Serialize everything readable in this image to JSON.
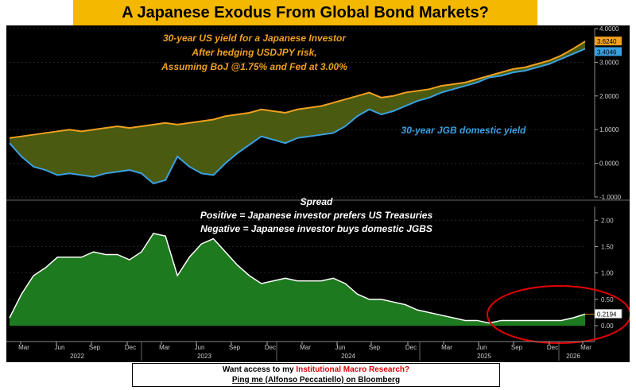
{
  "header": {
    "title": "A Japanese Exodus From Global Bond Markets?"
  },
  "footer": {
    "line1_prefix": "Want access to my ",
    "line1_highlight": "Institutional Macro Research?",
    "line2": "Ping me (Alfonso Peccatiello) on Bloomberg"
  },
  "colors": {
    "us_hedged": "#f0a020",
    "jgb": "#3aa0e0",
    "fill_between": "#4a5a10",
    "spread_fill": "#1e7a1e",
    "spread_line": "#ffffff",
    "highlight": "#e00000"
  },
  "chart_data": [
    {
      "type": "line",
      "annotation_title_lines": [
        "30-year US yield for a Japanese Investor",
        "After hedging USDJPY risk,",
        "Assuming BoJ @1.75% and Fed at 3.00%"
      ],
      "annotation_jgb": "30-year JGB domestic yield",
      "yticks": [
        "4.0000",
        "3.0000",
        "2.0000",
        "1.0000",
        "0.0000",
        "-1.0000"
      ],
      "ylim": [
        -1.0,
        4.0
      ],
      "last_values": [
        "3.6240",
        "3.4046"
      ],
      "series": [
        {
          "x": [
            "2022-01",
            "2022-02",
            "2022-03",
            "2022-04",
            "2022-05",
            "2022-06",
            "2022-07",
            "2022-08",
            "2022-09",
            "2022-10",
            "2022-11",
            "2022-12",
            "2023-01",
            "2023-02",
            "2023-03",
            "2023-04",
            "2023-05",
            "2023-06",
            "2023-07",
            "2023-08",
            "2023-09",
            "2023-10",
            "2023-11",
            "2023-12",
            "2024-01",
            "2024-02",
            "2024-03",
            "2024-04",
            "2024-05",
            "2024-06",
            "2024-07",
            "2024-08",
            "2024-09",
            "2024-10",
            "2024-11",
            "2024-12",
            "2025-01",
            "2025-02",
            "2025-03",
            "2025-04",
            "2025-05",
            "2025-06",
            "2025-07",
            "2025-08",
            "2025-09",
            "2025-10",
            "2025-11",
            "2025-12",
            "2026-01"
          ],
          "values": [
            0.75,
            0.8,
            0.85,
            0.9,
            0.95,
            1.0,
            0.95,
            1.0,
            1.05,
            1.1,
            1.05,
            1.1,
            1.15,
            1.2,
            1.15,
            1.2,
            1.25,
            1.3,
            1.4,
            1.45,
            1.5,
            1.6,
            1.55,
            1.5,
            1.6,
            1.65,
            1.7,
            1.8,
            1.9,
            2.0,
            2.1,
            1.95,
            2.0,
            2.1,
            2.15,
            2.2,
            2.3,
            2.35,
            2.4,
            2.5,
            2.6,
            2.7,
            2.8,
            2.85,
            2.95,
            3.05,
            3.2,
            3.4,
            3.62
          ]
        },
        {
          "x": [
            "2022-01",
            "2022-02",
            "2022-03",
            "2022-04",
            "2022-05",
            "2022-06",
            "2022-07",
            "2022-08",
            "2022-09",
            "2022-10",
            "2022-11",
            "2022-12",
            "2023-01",
            "2023-02",
            "2023-03",
            "2023-04",
            "2023-05",
            "2023-06",
            "2023-07",
            "2023-08",
            "2023-09",
            "2023-10",
            "2023-11",
            "2023-12",
            "2024-01",
            "2024-02",
            "2024-03",
            "2024-04",
            "2024-05",
            "2024-06",
            "2024-07",
            "2024-08",
            "2024-09",
            "2024-10",
            "2024-11",
            "2024-12",
            "2025-01",
            "2025-02",
            "2025-03",
            "2025-04",
            "2025-05",
            "2025-06",
            "2025-07",
            "2025-08",
            "2025-09",
            "2025-10",
            "2025-11",
            "2025-12",
            "2026-01"
          ],
          "values": [
            0.6,
            0.2,
            -0.1,
            -0.2,
            -0.35,
            -0.3,
            -0.35,
            -0.4,
            -0.3,
            -0.25,
            -0.2,
            -0.3,
            -0.6,
            -0.5,
            0.2,
            -0.1,
            -0.3,
            -0.35,
            0.0,
            0.3,
            0.55,
            0.8,
            0.7,
            0.6,
            0.75,
            0.8,
            0.85,
            0.9,
            1.1,
            1.4,
            1.6,
            1.45,
            1.55,
            1.7,
            1.85,
            1.95,
            2.1,
            2.2,
            2.3,
            2.4,
            2.55,
            2.6,
            2.7,
            2.75,
            2.85,
            2.95,
            3.1,
            3.25,
            3.4
          ]
        }
      ]
    },
    {
      "type": "area",
      "annotation_lines": [
        "Spread",
        "Positive = Japanese investor prefers US Treasuries",
        "Negative = Japanese investor buys domestic JGBS"
      ],
      "yticks": [
        "2.00",
        "1.50",
        "1.00",
        "0.50",
        "0.00"
      ],
      "ylim": [
        -0.3,
        2.2
      ],
      "last_value": "0.2194",
      "x": [
        "2022-01",
        "2022-02",
        "2022-03",
        "2022-04",
        "2022-05",
        "2022-06",
        "2022-07",
        "2022-08",
        "2022-09",
        "2022-10",
        "2022-11",
        "2022-12",
        "2023-01",
        "2023-02",
        "2023-03",
        "2023-04",
        "2023-05",
        "2023-06",
        "2023-07",
        "2023-08",
        "2023-09",
        "2023-10",
        "2023-11",
        "2023-12",
        "2024-01",
        "2024-02",
        "2024-03",
        "2024-04",
        "2024-05",
        "2024-06",
        "2024-07",
        "2024-08",
        "2024-09",
        "2024-10",
        "2024-11",
        "2024-12",
        "2025-01",
        "2025-02",
        "2025-03",
        "2025-04",
        "2025-05",
        "2025-06",
        "2025-07",
        "2025-08",
        "2025-09",
        "2025-10",
        "2025-11",
        "2025-12",
        "2026-01"
      ],
      "values": [
        0.15,
        0.6,
        0.95,
        1.1,
        1.3,
        1.3,
        1.3,
        1.4,
        1.35,
        1.35,
        1.25,
        1.4,
        1.75,
        1.7,
        0.95,
        1.3,
        1.55,
        1.65,
        1.4,
        1.15,
        0.95,
        0.8,
        0.85,
        0.9,
        0.85,
        0.85,
        0.85,
        0.9,
        0.8,
        0.6,
        0.5,
        0.5,
        0.45,
        0.4,
        0.3,
        0.25,
        0.2,
        0.15,
        0.1,
        0.1,
        0.05,
        0.1,
        0.1,
        0.1,
        0.1,
        0.1,
        0.1,
        0.15,
        0.22
      ],
      "xticks": [
        "Mar",
        "Jun",
        "Sep",
        "Dec",
        "Mar",
        "Jun",
        "Sep",
        "Dec",
        "Mar",
        "Jun",
        "Sep",
        "Dec",
        "Mar",
        "Jun",
        "Sep",
        "Dec",
        "Mar"
      ],
      "xyears": [
        "2022",
        "2023",
        "2024",
        "2025",
        "2026"
      ]
    }
  ]
}
